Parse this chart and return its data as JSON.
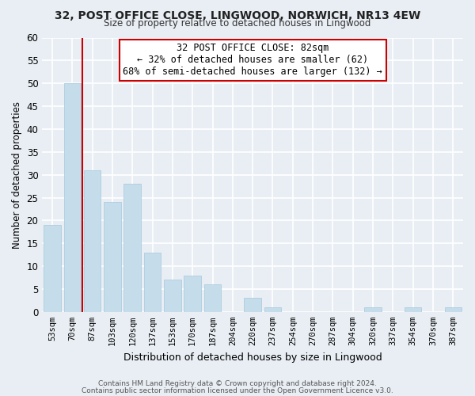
{
  "title": "32, POST OFFICE CLOSE, LINGWOOD, NORWICH, NR13 4EW",
  "subtitle": "Size of property relative to detached houses in Lingwood",
  "xlabel": "Distribution of detached houses by size in Lingwood",
  "ylabel": "Number of detached properties",
  "bar_labels": [
    "53sqm",
    "70sqm",
    "87sqm",
    "103sqm",
    "120sqm",
    "137sqm",
    "153sqm",
    "170sqm",
    "187sqm",
    "204sqm",
    "220sqm",
    "237sqm",
    "254sqm",
    "270sqm",
    "287sqm",
    "304sqm",
    "320sqm",
    "337sqm",
    "354sqm",
    "370sqm",
    "387sqm"
  ],
  "bar_values": [
    19,
    50,
    31,
    24,
    28,
    13,
    7,
    8,
    6,
    0,
    3,
    1,
    0,
    0,
    0,
    0,
    1,
    0,
    1,
    0,
    1
  ],
  "bar_color": "#c5dcea",
  "bar_edge_color": "#a8c8dc",
  "subject_line_color": "#cc0000",
  "ylim": [
    0,
    60
  ],
  "yticks": [
    0,
    5,
    10,
    15,
    20,
    25,
    30,
    35,
    40,
    45,
    50,
    55,
    60
  ],
  "annotation_title": "32 POST OFFICE CLOSE: 82sqm",
  "annotation_line1": "← 32% of detached houses are smaller (62)",
  "annotation_line2": "68% of semi-detached houses are larger (132) →",
  "annotation_box_color": "#ffffff",
  "annotation_box_edge": "#cc0000",
  "footer1": "Contains HM Land Registry data © Crown copyright and database right 2024.",
  "footer2": "Contains public sector information licensed under the Open Government Licence v3.0.",
  "bg_color": "#e8eef4",
  "plot_bg_color": "#e8eef4",
  "grid_color": "#ffffff"
}
